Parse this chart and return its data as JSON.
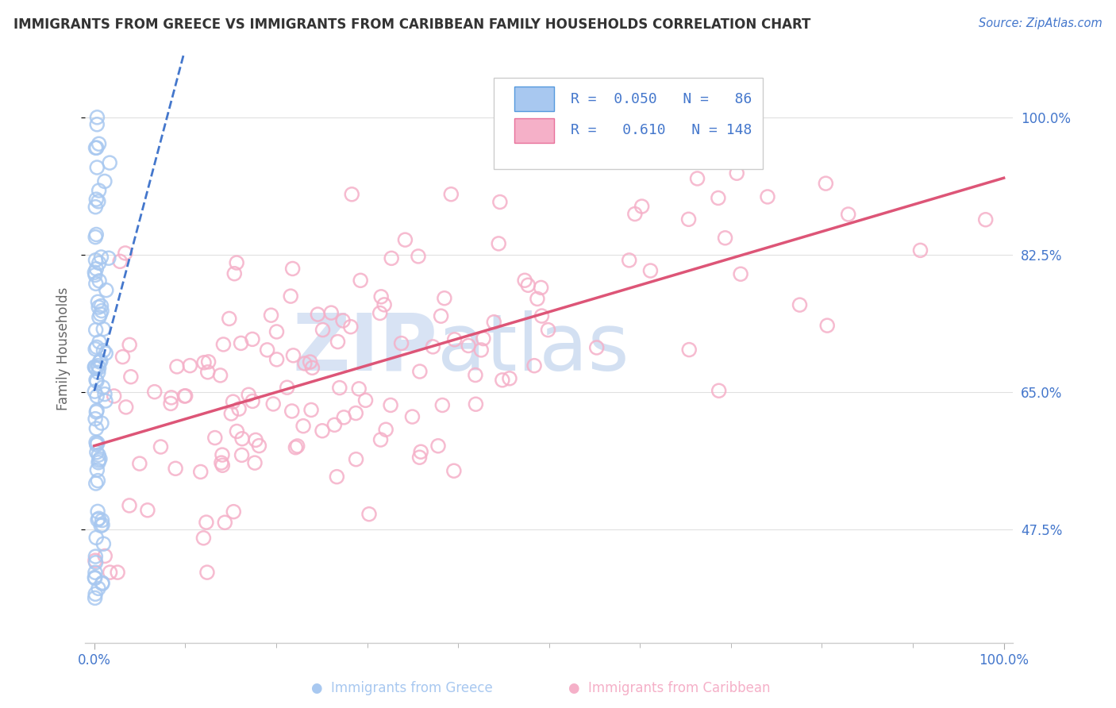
{
  "title": "IMMIGRANTS FROM GREECE VS IMMIGRANTS FROM CARIBBEAN FAMILY HOUSEHOLDS CORRELATION CHART",
  "source_text": "Source: ZipAtlas.com",
  "ylabel": "Family Households",
  "y_tick_labels": [
    "47.5%",
    "65.0%",
    "82.5%",
    "100.0%"
  ],
  "y_tick_values": [
    0.475,
    0.65,
    0.825,
    1.0
  ],
  "x_range": [
    0.0,
    1.0
  ],
  "y_range": [
    0.33,
    1.08
  ],
  "legend_label1": "Immigrants from Greece",
  "legend_label2": "Immigrants from Caribbean",
  "R1": 0.05,
  "N1": 86,
  "R2": 0.61,
  "N2": 148,
  "color_greece": "#A8C8F0",
  "color_caribbean": "#F5B0C8",
  "color_greece_edge": "#5599DD",
  "color_caribbean_edge": "#E8709A",
  "color_greece_line": "#4477CC",
  "color_caribbean_line": "#DD5577",
  "title_color": "#333333",
  "axis_label_color": "#4477CC",
  "background_color": "#FFFFFF",
  "watermark_zip_color": "#C8D8F0",
  "watermark_atlas_color": "#B0C8E8"
}
